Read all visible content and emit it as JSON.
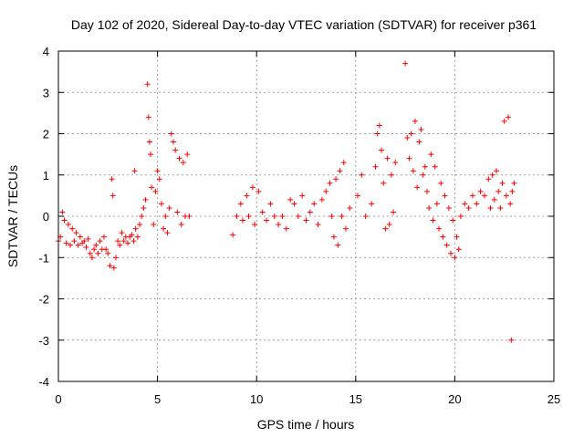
{
  "chart_data": {
    "type": "scatter",
    "title": "Day 102 of 2020, Sidereal Day-to-day VTEC variation (SDTVAR) for receiver p361",
    "xlabel": "GPS time / hours",
    "ylabel": "SDTVAR / TECUs",
    "xlim": [
      0,
      25
    ],
    "ylim": [
      -4,
      4
    ],
    "xticks": [
      "0",
      "5",
      "10",
      "15",
      "20",
      "25"
    ],
    "yticks": [
      "-4",
      "-3",
      "-2",
      "-1",
      "0",
      "1",
      "2",
      "3",
      "4"
    ],
    "grid": true,
    "marker": "+",
    "color": "#ff0000",
    "series": [
      {
        "name": "SDTVAR",
        "points": [
          [
            0.0,
            -0.6
          ],
          [
            0.1,
            -0.5
          ],
          [
            0.2,
            0.1
          ],
          [
            0.3,
            -0.1
          ],
          [
            0.4,
            -0.65
          ],
          [
            0.5,
            -0.2
          ],
          [
            0.6,
            -0.7
          ],
          [
            0.7,
            -0.3
          ],
          [
            0.8,
            -0.6
          ],
          [
            0.9,
            -0.4
          ],
          [
            1.0,
            -0.7
          ],
          [
            1.1,
            -0.5
          ],
          [
            1.2,
            -0.65
          ],
          [
            1.3,
            -0.6
          ],
          [
            1.4,
            -0.75
          ],
          [
            1.5,
            -0.55
          ],
          [
            1.6,
            -0.9
          ],
          [
            1.7,
            -1.0
          ],
          [
            1.8,
            -0.8
          ],
          [
            1.9,
            -0.7
          ],
          [
            2.0,
            -0.9
          ],
          [
            2.1,
            -0.6
          ],
          [
            2.2,
            -0.8
          ],
          [
            2.3,
            -0.5
          ],
          [
            2.4,
            -0.8
          ],
          [
            2.5,
            -0.9
          ],
          [
            2.6,
            -1.2
          ],
          [
            2.7,
            0.9
          ],
          [
            2.75,
            0.5
          ],
          [
            2.8,
            -1.25
          ],
          [
            2.9,
            -1.0
          ],
          [
            3.0,
            -0.6
          ],
          [
            3.1,
            -0.7
          ],
          [
            3.2,
            -0.4
          ],
          [
            3.3,
            -0.6
          ],
          [
            3.4,
            -0.5
          ],
          [
            3.5,
            -0.65
          ],
          [
            3.6,
            -0.5
          ],
          [
            3.7,
            -0.45
          ],
          [
            3.8,
            -0.6
          ],
          [
            3.85,
            1.1
          ],
          [
            3.9,
            -0.3
          ],
          [
            4.0,
            -0.5
          ],
          [
            4.1,
            -0.2
          ],
          [
            4.2,
            0.0
          ],
          [
            4.3,
            0.2
          ],
          [
            4.4,
            0.4
          ],
          [
            4.5,
            3.2
          ],
          [
            4.55,
            2.4
          ],
          [
            4.6,
            1.8
          ],
          [
            4.65,
            1.5
          ],
          [
            4.7,
            0.7
          ],
          [
            4.8,
            -0.2
          ],
          [
            4.9,
            0.6
          ],
          [
            5.0,
            1.1
          ],
          [
            5.1,
            0.9
          ],
          [
            5.2,
            0.3
          ],
          [
            5.3,
            -0.3
          ],
          [
            5.4,
            0.0
          ],
          [
            5.5,
            -0.4
          ],
          [
            5.6,
            0.2
          ],
          [
            5.7,
            2.0
          ],
          [
            5.8,
            1.8
          ],
          [
            5.9,
            1.6
          ],
          [
            6.0,
            0.1
          ],
          [
            6.1,
            1.4
          ],
          [
            6.2,
            -0.2
          ],
          [
            6.3,
            1.3
          ],
          [
            6.4,
            0.0
          ],
          [
            6.5,
            1.5
          ],
          [
            6.6,
            0.0
          ],
          [
            8.8,
            -0.45
          ],
          [
            9.0,
            0.0
          ],
          [
            9.2,
            0.3
          ],
          [
            9.3,
            -0.1
          ],
          [
            9.5,
            0.5
          ],
          [
            9.6,
            0.0
          ],
          [
            9.8,
            0.7
          ],
          [
            9.9,
            -0.2
          ],
          [
            10.1,
            0.6
          ],
          [
            10.3,
            0.1
          ],
          [
            10.5,
            -0.1
          ],
          [
            10.7,
            0.3
          ],
          [
            10.9,
            0.0
          ],
          [
            11.1,
            -0.2
          ],
          [
            11.3,
            0.0
          ],
          [
            11.5,
            -0.3
          ],
          [
            11.7,
            0.4
          ],
          [
            11.9,
            0.3
          ],
          [
            12.1,
            0.0
          ],
          [
            12.3,
            0.5
          ],
          [
            12.5,
            -0.1
          ],
          [
            12.7,
            0.1
          ],
          [
            12.9,
            0.3
          ],
          [
            13.1,
            -0.2
          ],
          [
            13.3,
            0.4
          ],
          [
            13.5,
            0.6
          ],
          [
            13.7,
            0.8
          ],
          [
            13.8,
            0.0
          ],
          [
            13.9,
            -0.5
          ],
          [
            14.0,
            0.9
          ],
          [
            14.1,
            -0.7
          ],
          [
            14.2,
            1.1
          ],
          [
            14.3,
            0.0
          ],
          [
            14.4,
            1.3
          ],
          [
            14.5,
            -0.3
          ],
          [
            14.7,
            0.2
          ],
          [
            15.1,
            0.5
          ],
          [
            15.3,
            1.0
          ],
          [
            15.5,
            0.0
          ],
          [
            15.8,
            0.3
          ],
          [
            16.0,
            1.2
          ],
          [
            16.1,
            2.0
          ],
          [
            16.2,
            2.2
          ],
          [
            16.3,
            1.6
          ],
          [
            16.4,
            0.8
          ],
          [
            16.5,
            -0.3
          ],
          [
            16.6,
            1.4
          ],
          [
            16.7,
            -0.2
          ],
          [
            16.8,
            1.0
          ],
          [
            16.9,
            0.1
          ],
          [
            17.0,
            1.3
          ],
          [
            17.5,
            3.7
          ],
          [
            17.6,
            1.9
          ],
          [
            17.7,
            1.4
          ],
          [
            17.8,
            2.0
          ],
          [
            17.9,
            1.1
          ],
          [
            18.0,
            2.3
          ],
          [
            18.1,
            0.7
          ],
          [
            18.2,
            1.8
          ],
          [
            18.3,
            2.1
          ],
          [
            18.4,
            1.0
          ],
          [
            18.5,
            1.2
          ],
          [
            18.6,
            0.6
          ],
          [
            18.7,
            0.2
          ],
          [
            18.8,
            1.5
          ],
          [
            18.9,
            -0.1
          ],
          [
            19.0,
            1.2
          ],
          [
            19.1,
            0.3
          ],
          [
            19.2,
            -0.3
          ],
          [
            19.3,
            0.8
          ],
          [
            19.4,
            -0.5
          ],
          [
            19.5,
            0.5
          ],
          [
            19.6,
            -0.7
          ],
          [
            19.7,
            0.2
          ],
          [
            19.8,
            -0.9
          ],
          [
            19.9,
            -0.1
          ],
          [
            20.0,
            -1.0
          ],
          [
            20.1,
            -0.5
          ],
          [
            20.2,
            -0.8
          ],
          [
            20.3,
            0.0
          ],
          [
            20.5,
            0.3
          ],
          [
            20.7,
            0.2
          ],
          [
            20.9,
            0.5
          ],
          [
            21.1,
            0.3
          ],
          [
            21.3,
            0.6
          ],
          [
            21.5,
            0.5
          ],
          [
            21.7,
            0.9
          ],
          [
            21.8,
            0.2
          ],
          [
            21.9,
            1.0
          ],
          [
            22.0,
            0.4
          ],
          [
            22.1,
            1.1
          ],
          [
            22.2,
            0.6
          ],
          [
            22.3,
            0.2
          ],
          [
            22.4,
            0.8
          ],
          [
            22.5,
            2.3
          ],
          [
            22.6,
            0.5
          ],
          [
            22.7,
            2.4
          ],
          [
            22.8,
            0.3
          ],
          [
            22.85,
            -3.0
          ],
          [
            22.9,
            0.6
          ],
          [
            23.0,
            0.8
          ]
        ]
      }
    ]
  }
}
